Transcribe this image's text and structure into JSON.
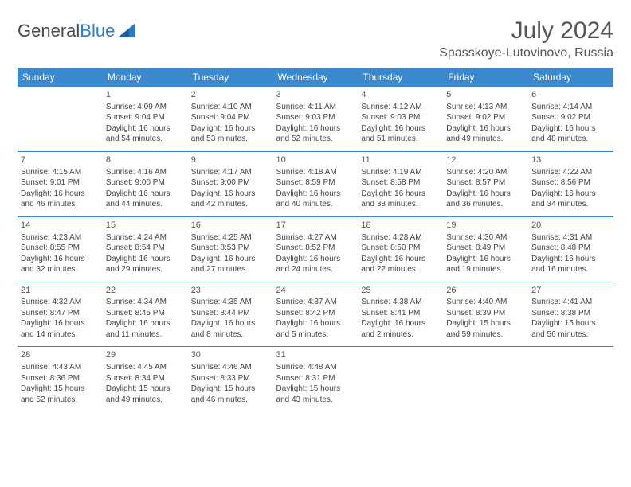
{
  "brand": {
    "part1": "General",
    "part2": "Blue"
  },
  "title": "July 2024",
  "location": "Spasskoye-Lutovinovo, Russia",
  "colors": {
    "header_bg": "#3a89cf",
    "header_text": "#ffffff",
    "cell_border": "#3a89cf",
    "text": "#444444",
    "title_text": "#555555",
    "background": "#ffffff"
  },
  "dayHeaders": [
    "Sunday",
    "Monday",
    "Tuesday",
    "Wednesday",
    "Thursday",
    "Friday",
    "Saturday"
  ],
  "weeks": [
    [
      null,
      {
        "n": "1",
        "sr": "4:09 AM",
        "ss": "9:04 PM",
        "dl": "16 hours and 54 minutes."
      },
      {
        "n": "2",
        "sr": "4:10 AM",
        "ss": "9:04 PM",
        "dl": "16 hours and 53 minutes."
      },
      {
        "n": "3",
        "sr": "4:11 AM",
        "ss": "9:03 PM",
        "dl": "16 hours and 52 minutes."
      },
      {
        "n": "4",
        "sr": "4:12 AM",
        "ss": "9:03 PM",
        "dl": "16 hours and 51 minutes."
      },
      {
        "n": "5",
        "sr": "4:13 AM",
        "ss": "9:02 PM",
        "dl": "16 hours and 49 minutes."
      },
      {
        "n": "6",
        "sr": "4:14 AM",
        "ss": "9:02 PM",
        "dl": "16 hours and 48 minutes."
      }
    ],
    [
      {
        "n": "7",
        "sr": "4:15 AM",
        "ss": "9:01 PM",
        "dl": "16 hours and 46 minutes."
      },
      {
        "n": "8",
        "sr": "4:16 AM",
        "ss": "9:00 PM",
        "dl": "16 hours and 44 minutes."
      },
      {
        "n": "9",
        "sr": "4:17 AM",
        "ss": "9:00 PM",
        "dl": "16 hours and 42 minutes."
      },
      {
        "n": "10",
        "sr": "4:18 AM",
        "ss": "8:59 PM",
        "dl": "16 hours and 40 minutes."
      },
      {
        "n": "11",
        "sr": "4:19 AM",
        "ss": "8:58 PM",
        "dl": "16 hours and 38 minutes."
      },
      {
        "n": "12",
        "sr": "4:20 AM",
        "ss": "8:57 PM",
        "dl": "16 hours and 36 minutes."
      },
      {
        "n": "13",
        "sr": "4:22 AM",
        "ss": "8:56 PM",
        "dl": "16 hours and 34 minutes."
      }
    ],
    [
      {
        "n": "14",
        "sr": "4:23 AM",
        "ss": "8:55 PM",
        "dl": "16 hours and 32 minutes."
      },
      {
        "n": "15",
        "sr": "4:24 AM",
        "ss": "8:54 PM",
        "dl": "16 hours and 29 minutes."
      },
      {
        "n": "16",
        "sr": "4:25 AM",
        "ss": "8:53 PM",
        "dl": "16 hours and 27 minutes."
      },
      {
        "n": "17",
        "sr": "4:27 AM",
        "ss": "8:52 PM",
        "dl": "16 hours and 24 minutes."
      },
      {
        "n": "18",
        "sr": "4:28 AM",
        "ss": "8:50 PM",
        "dl": "16 hours and 22 minutes."
      },
      {
        "n": "19",
        "sr": "4:30 AM",
        "ss": "8:49 PM",
        "dl": "16 hours and 19 minutes."
      },
      {
        "n": "20",
        "sr": "4:31 AM",
        "ss": "8:48 PM",
        "dl": "16 hours and 16 minutes."
      }
    ],
    [
      {
        "n": "21",
        "sr": "4:32 AM",
        "ss": "8:47 PM",
        "dl": "16 hours and 14 minutes."
      },
      {
        "n": "22",
        "sr": "4:34 AM",
        "ss": "8:45 PM",
        "dl": "16 hours and 11 minutes."
      },
      {
        "n": "23",
        "sr": "4:35 AM",
        "ss": "8:44 PM",
        "dl": "16 hours and 8 minutes."
      },
      {
        "n": "24",
        "sr": "4:37 AM",
        "ss": "8:42 PM",
        "dl": "16 hours and 5 minutes."
      },
      {
        "n": "25",
        "sr": "4:38 AM",
        "ss": "8:41 PM",
        "dl": "16 hours and 2 minutes."
      },
      {
        "n": "26",
        "sr": "4:40 AM",
        "ss": "8:39 PM",
        "dl": "15 hours and 59 minutes."
      },
      {
        "n": "27",
        "sr": "4:41 AM",
        "ss": "8:38 PM",
        "dl": "15 hours and 56 minutes."
      }
    ],
    [
      {
        "n": "28",
        "sr": "4:43 AM",
        "ss": "8:36 PM",
        "dl": "15 hours and 52 minutes."
      },
      {
        "n": "29",
        "sr": "4:45 AM",
        "ss": "8:34 PM",
        "dl": "15 hours and 49 minutes."
      },
      {
        "n": "30",
        "sr": "4:46 AM",
        "ss": "8:33 PM",
        "dl": "15 hours and 46 minutes."
      },
      {
        "n": "31",
        "sr": "4:48 AM",
        "ss": "8:31 PM",
        "dl": "15 hours and 43 minutes."
      },
      null,
      null,
      null
    ]
  ],
  "labels": {
    "sunrise": "Sunrise:",
    "sunset": "Sunset:",
    "daylight": "Daylight:"
  }
}
